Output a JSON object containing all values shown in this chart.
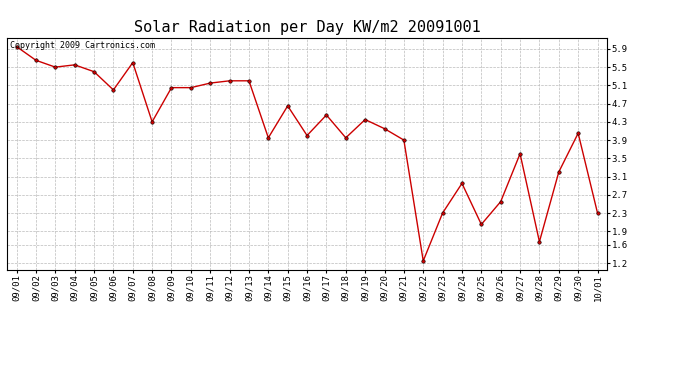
{
  "title": "Solar Radiation per Day KW/m2 20091001",
  "dates": [
    "09/01",
    "09/02",
    "09/03",
    "09/04",
    "09/05",
    "09/06",
    "09/07",
    "09/08",
    "09/09",
    "09/10",
    "09/11",
    "09/12",
    "09/13",
    "09/14",
    "09/15",
    "09/16",
    "09/17",
    "09/18",
    "09/19",
    "09/20",
    "09/21",
    "09/22",
    "09/23",
    "09/24",
    "09/25",
    "09/26",
    "09/27",
    "09/28",
    "09/29",
    "09/30",
    "10/01"
  ],
  "values": [
    5.95,
    5.65,
    5.5,
    5.55,
    5.4,
    5.0,
    5.6,
    4.3,
    5.05,
    5.05,
    5.15,
    5.2,
    5.2,
    3.95,
    4.65,
    4.0,
    4.45,
    3.95,
    4.35,
    4.15,
    3.9,
    1.25,
    2.3,
    2.95,
    2.05,
    2.55,
    3.6,
    1.67,
    3.2,
    4.05,
    2.3
  ],
  "line_color": "#cc0000",
  "marker": "o",
  "marker_size": 2.5,
  "marker_color": "#cc0000",
  "grid_color": "#bbbbbb",
  "grid_style": "--",
  "background_color": "#ffffff",
  "yticks": [
    1.2,
    1.6,
    1.9,
    2.3,
    2.7,
    3.1,
    3.5,
    3.9,
    4.3,
    4.7,
    5.1,
    5.5,
    5.9
  ],
  "ylim": [
    1.05,
    6.15
  ],
  "copyright_text": "Copyright 2009 Cartronics.com",
  "title_fontsize": 11,
  "tick_fontsize": 6.5,
  "copyright_fontsize": 6
}
